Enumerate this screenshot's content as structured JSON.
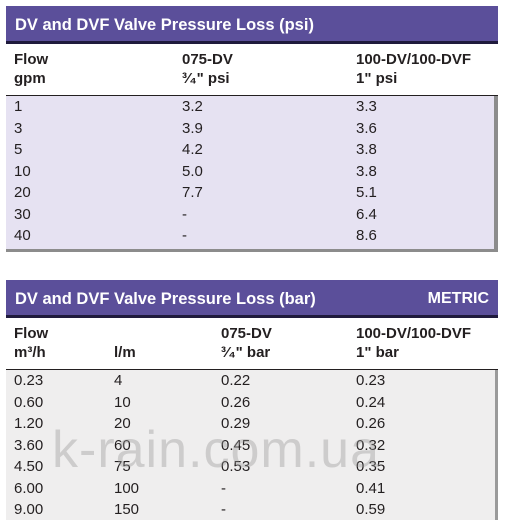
{
  "table_psi": {
    "title": "DV and DVF Valve Pressure Loss (psi)",
    "headers": {
      "flow_line1": "Flow",
      "flow_line2": "gpm",
      "dv_line1": "075-DV",
      "dv_line2": "³⁄₄\" psi",
      "dvf_line1": "100-DV/100-DVF",
      "dvf_line2": "1\" psi"
    },
    "rows": [
      [
        "1",
        "3.2",
        "3.3"
      ],
      [
        "3",
        "3.9",
        "3.6"
      ],
      [
        "5",
        "4.2",
        "3.8"
      ],
      [
        "10",
        "5.0",
        "3.8"
      ],
      [
        "20",
        "7.7",
        "5.1"
      ],
      [
        "30",
        "-",
        "6.4"
      ],
      [
        "40",
        "-",
        "8.6"
      ]
    ]
  },
  "table_bar": {
    "title": "DV and DVF Valve Pressure Loss (bar)",
    "metric_label": "METRIC",
    "headers": {
      "flow_line1": "Flow",
      "flow_line2": "m³/h",
      "lm_line2": "l/m",
      "dv_line1": "075-DV",
      "dv_line2": "³⁄₄\" bar",
      "dvf_line1": "100-DV/100-DVF",
      "dvf_line2": "1\" bar"
    },
    "rows": [
      [
        "0.23",
        "4",
        "0.22",
        "0.23"
      ],
      [
        "0.60",
        "10",
        "0.26",
        "0.24"
      ],
      [
        "1.20",
        "20",
        "0.29",
        "0.26"
      ],
      [
        "3.60",
        "60",
        "0.45",
        "0.32"
      ],
      [
        "4.50",
        "75",
        "0.53",
        "0.35"
      ],
      [
        "6.00",
        "100",
        "-",
        "0.41"
      ],
      [
        "9.00",
        "150",
        "-",
        "0.59"
      ]
    ]
  },
  "watermark": "k-rain.com.ua",
  "colors": {
    "title_bg": "#5b4f9a",
    "psi_body_bg": "#e6e2f2",
    "bar_body_bg": "#efeeee"
  }
}
